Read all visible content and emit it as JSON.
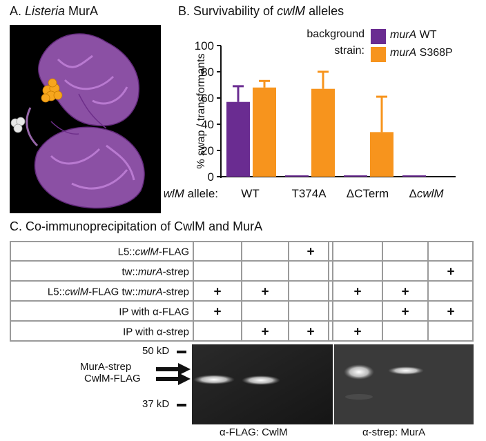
{
  "panelA": {
    "title_prefix": "A. ",
    "title_italic": "Listeria",
    "title_suffix": " MurA"
  },
  "panelB": {
    "title_prefix": "B. Survivability of ",
    "title_italic": "cwlM",
    "title_suffix": " alleles",
    "legend_header_line1": "background",
    "legend_header_line2": "strain:",
    "x_axis_prefix_italic": "cwlM",
    "x_axis_prefix_suffix": " allele:",
    "colors": {
      "murA_WT": "#6a2c91",
      "murA_S368P": "#f7941d"
    }
  },
  "chart_data": {
    "type": "bar",
    "title": "Survivability of cwlM alleles",
    "ylabel": "% swap / transformants",
    "xlabel": "cwlM allele:",
    "ylim": [
      0,
      100
    ],
    "yticks": [
      0,
      20,
      40,
      60,
      80,
      100
    ],
    "categories": [
      "WT",
      "T374A",
      "ΔCTerm",
      "ΔcwlM"
    ],
    "categories_italic_part": [
      "",
      "",
      "",
      "cwlM"
    ],
    "series": [
      {
        "name": "murA WT",
        "name_italic": "murA",
        "name_rest": " WT",
        "color": "#6a2c91",
        "values": [
          57,
          1,
          1,
          1
        ],
        "errors": [
          12,
          0,
          0,
          0
        ]
      },
      {
        "name": "murA S368P",
        "name_italic": "murA",
        "name_rest": " S368P",
        "color": "#f7941d",
        "values": [
          68,
          67,
          34,
          0
        ],
        "errors": [
          5,
          13,
          27,
          0
        ]
      }
    ],
    "legend_placement": "top-right",
    "grid": false
  },
  "panelC": {
    "title": "C. Co-immunoprecipitation of CwlM and MurA",
    "rows": [
      {
        "parts": [
          {
            "t": "L5::"
          },
          {
            "t": "cwlM",
            "i": true
          },
          {
            "t": "-FLAG"
          }
        ],
        "marks": [
          "",
          "",
          "+",
          "",
          "",
          ""
        ]
      },
      {
        "parts": [
          {
            "t": "tw::"
          },
          {
            "t": "murA",
            "i": true
          },
          {
            "t": "-strep"
          }
        ],
        "marks": [
          "",
          "",
          "",
          "",
          "",
          "+"
        ]
      },
      {
        "parts": [
          {
            "t": "L5::"
          },
          {
            "t": "cwlM",
            "i": true
          },
          {
            "t": "-FLAG tw::"
          },
          {
            "t": "murA",
            "i": true
          },
          {
            "t": "-strep"
          }
        ],
        "marks": [
          "+",
          "+",
          "",
          "+",
          "+",
          ""
        ]
      },
      {
        "parts": [
          {
            "t": "IP with α-FLAG"
          }
        ],
        "marks": [
          "+",
          "",
          "",
          "",
          "+",
          "+"
        ]
      },
      {
        "parts": [
          {
            "t": "IP with α-strep"
          }
        ],
        "marks": [
          "",
          "+",
          "+",
          "+",
          "",
          ""
        ]
      }
    ],
    "gel": {
      "mw_top": "50 kD",
      "mw_bottom": "37 kD",
      "band_label_1": "MurA-strep",
      "band_label_2": "CwlM-FLAG",
      "blot_left_label": "α-FLAG: CwlM",
      "blot_right_label": "α-strep: MurA"
    }
  }
}
